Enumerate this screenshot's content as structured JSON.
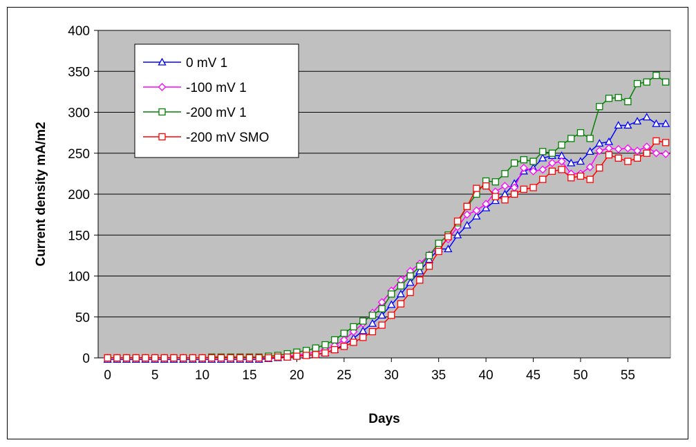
{
  "chart_data": {
    "type": "line",
    "xlabel": "Days",
    "ylabel": "Current density mA/m2",
    "xlim": [
      -1,
      59.5
    ],
    "ylim": [
      0,
      400
    ],
    "x_ticks": [
      0,
      5,
      10,
      15,
      20,
      25,
      30,
      35,
      40,
      45,
      50,
      55
    ],
    "y_ticks": [
      0,
      50,
      100,
      150,
      200,
      250,
      300,
      350,
      400
    ],
    "grid": "horizontal",
    "plot_background": "#c0c0c0",
    "legend_position": "top-left",
    "series": [
      {
        "name": "0 mV  1",
        "color": "#0000ff",
        "marker": "triangle",
        "x": [
          0,
          1,
          2,
          3,
          4,
          5,
          6,
          7,
          8,
          9,
          10,
          11,
          12,
          13,
          14,
          15,
          16,
          17,
          18,
          19,
          20,
          21,
          22,
          23,
          24,
          25,
          26,
          27,
          28,
          29,
          30,
          31,
          32,
          33,
          34,
          35,
          36,
          37,
          38,
          39,
          40,
          41,
          42,
          43,
          44,
          45,
          46,
          47,
          48,
          49,
          50,
          51,
          52,
          53,
          54,
          55,
          56,
          57,
          58,
          59
        ],
        "y": [
          -2,
          -2,
          -2,
          -2,
          -2,
          -2,
          -2,
          -2,
          -2,
          -2,
          -2,
          -2,
          -2,
          -2,
          -2,
          -2,
          -2,
          -1,
          0,
          1,
          2,
          3,
          4,
          6,
          10,
          16,
          24,
          33,
          42,
          52,
          65,
          78,
          92,
          106,
          120,
          133,
          133,
          150,
          162,
          173,
          183,
          192,
          200,
          213,
          228,
          232,
          244,
          247,
          247,
          238,
          240,
          252,
          262,
          264,
          284,
          284,
          289,
          294,
          286,
          286
        ]
      },
      {
        "name": "-100 mV 1",
        "color": "#ff00ff",
        "marker": "diamond",
        "x": [
          0,
          1,
          2,
          3,
          4,
          5,
          6,
          7,
          8,
          9,
          10,
          11,
          12,
          13,
          14,
          15,
          16,
          17,
          18,
          19,
          20,
          21,
          22,
          23,
          24,
          25,
          26,
          27,
          28,
          29,
          30,
          31,
          32,
          33,
          34,
          35,
          36,
          37,
          38,
          39,
          40,
          41,
          42,
          43,
          44,
          45,
          46,
          47,
          48,
          49,
          50,
          51,
          52,
          53,
          54,
          55,
          56,
          57,
          58,
          59
        ],
        "y": [
          0,
          0,
          0,
          0,
          0,
          0,
          0,
          0,
          0,
          0,
          0,
          0,
          0,
          0,
          0,
          0,
          0,
          0,
          1,
          2,
          3,
          5,
          7,
          10,
          15,
          22,
          32,
          42,
          55,
          68,
          82,
          95,
          106,
          115,
          126,
          135,
          145,
          160,
          175,
          180,
          188,
          203,
          210,
          208,
          232,
          228,
          230,
          238,
          240,
          225,
          225,
          233,
          253,
          256,
          255,
          256,
          253,
          258,
          250,
          249
        ]
      },
      {
        "name": "-200 mV 1",
        "color": "#008000",
        "marker": "square",
        "x": [
          0,
          1,
          2,
          3,
          4,
          5,
          6,
          7,
          8,
          9,
          10,
          11,
          12,
          13,
          14,
          15,
          16,
          17,
          18,
          19,
          20,
          21,
          22,
          23,
          24,
          25,
          26,
          27,
          28,
          29,
          30,
          31,
          32,
          33,
          34,
          35,
          36,
          37,
          38,
          39,
          40,
          41,
          42,
          43,
          44,
          45,
          46,
          47,
          48,
          49,
          50,
          51,
          52,
          53,
          54,
          55,
          56,
          57,
          58,
          59
        ],
        "y": [
          0,
          0,
          0,
          0,
          0,
          0,
          0,
          0,
          0,
          0,
          0,
          1,
          1,
          1,
          1,
          1,
          1,
          2,
          3,
          5,
          7,
          9,
          12,
          16,
          22,
          30,
          38,
          45,
          52,
          60,
          78,
          88,
          100,
          112,
          125,
          140,
          150,
          165,
          185,
          200,
          216,
          215,
          225,
          238,
          242,
          240,
          252,
          250,
          260,
          268,
          275,
          268,
          307,
          317,
          318,
          313,
          335,
          337,
          345,
          337
        ]
      },
      {
        "name": "-200 mV SMO",
        "color": "#ff0000",
        "marker": "square",
        "x": [
          0,
          1,
          2,
          3,
          4,
          5,
          6,
          7,
          8,
          9,
          10,
          11,
          12,
          13,
          14,
          15,
          16,
          17,
          18,
          19,
          20,
          21,
          22,
          23,
          24,
          25,
          26,
          27,
          28,
          29,
          30,
          31,
          32,
          33,
          34,
          35,
          36,
          37,
          38,
          39,
          40,
          41,
          42,
          43,
          44,
          45,
          46,
          47,
          48,
          49,
          50,
          51,
          52,
          53,
          54,
          55,
          56,
          57,
          58,
          59
        ],
        "y": [
          0,
          0,
          0,
          0,
          0,
          0,
          0,
          0,
          0,
          0,
          0,
          0,
          0,
          0,
          0,
          0,
          0,
          0,
          1,
          1,
          2,
          3,
          4,
          6,
          10,
          14,
          19,
          25,
          32,
          40,
          52,
          66,
          80,
          95,
          112,
          130,
          148,
          167,
          185,
          207,
          210,
          197,
          193,
          200,
          206,
          208,
          218,
          228,
          230,
          220,
          222,
          218,
          232,
          248,
          244,
          240,
          244,
          250,
          265,
          263
        ]
      }
    ]
  }
}
